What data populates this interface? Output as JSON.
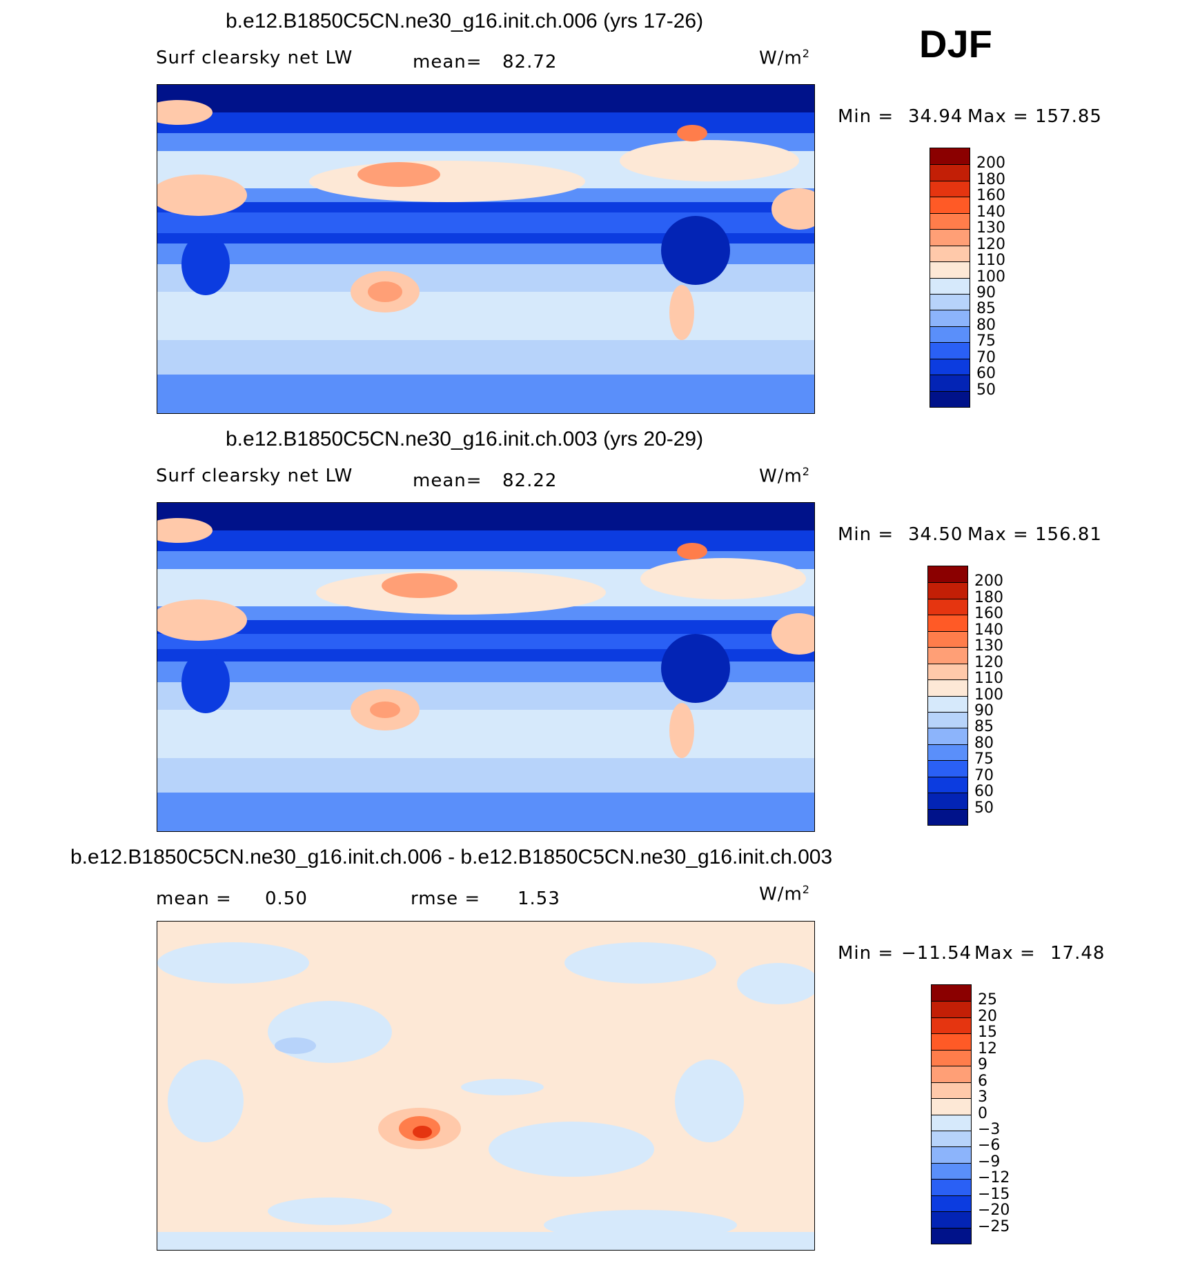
{
  "season": "DJF",
  "panels": [
    {
      "title": "b.e12.B1850C5CN.ne30_g16.init.ch.006 (yrs 17-26)",
      "left_label": "Surf clearsky net LW",
      "stat_label": "mean=",
      "stat_value": "82.72",
      "units": "W/m",
      "units_sup": "2",
      "minmax_label": "Min =",
      "min": "34.94",
      "max_label": "Max =",
      "max": "157.85",
      "colorbar_labels": [
        "200",
        "180",
        "160",
        "140",
        "130",
        "120",
        "110",
        "100",
        "90",
        "85",
        "80",
        "75",
        "70",
        "60",
        "50"
      ],
      "colorbar_colors": [
        "#8b0000",
        "#c31f06",
        "#e53510",
        "#ff5a26",
        "#ff7d4b",
        "#ff9f76",
        "#ffc9aa",
        "#fde8d6",
        "#d6e9fb",
        "#b7d3fa",
        "#8cb4fb",
        "#5a8ffa",
        "#2a60f5",
        "#0c3ce0",
        "#0324b5",
        "#00128a"
      ]
    },
    {
      "title": "b.e12.B1850C5CN.ne30_g16.init.ch.003 (yrs 20-29)",
      "left_label": "Surf clearsky net LW",
      "stat_label": "mean=",
      "stat_value": "82.22",
      "units": "W/m",
      "units_sup": "2",
      "minmax_label": "Min =",
      "min": "34.50",
      "max_label": "Max =",
      "max": "156.81",
      "colorbar_labels": [
        "200",
        "180",
        "160",
        "140",
        "130",
        "120",
        "110",
        "100",
        "90",
        "85",
        "80",
        "75",
        "70",
        "60",
        "50"
      ],
      "colorbar_colors": [
        "#8b0000",
        "#c31f06",
        "#e53510",
        "#ff5a26",
        "#ff7d4b",
        "#ff9f76",
        "#ffc9aa",
        "#fde8d6",
        "#d6e9fb",
        "#b7d3fa",
        "#8cb4fb",
        "#5a8ffa",
        "#2a60f5",
        "#0c3ce0",
        "#0324b5",
        "#00128a"
      ]
    },
    {
      "title": "b.e12.B1850C5CN.ne30_g16.init.ch.006 - b.e12.B1850C5CN.ne30_g16.init.ch.003",
      "left_label": "mean =",
      "left_value": "0.50",
      "stat_label": "rmse =",
      "stat_value": "1.53",
      "units": "W/m",
      "units_sup": "2",
      "minmax_label": "Min =",
      "min": "−11.54",
      "max_label": "Max =",
      "max": "17.48",
      "colorbar_labels": [
        "25",
        "20",
        "15",
        "12",
        "9",
        "6",
        "3",
        "0",
        "−3",
        "−6",
        "−9",
        "−12",
        "−15",
        "−20",
        "−25"
      ],
      "colorbar_colors": [
        "#8b0000",
        "#c31f06",
        "#e53510",
        "#ff5a26",
        "#ff7d4b",
        "#ff9f76",
        "#ffc9aa",
        "#fde8d6",
        "#d6e9fb",
        "#b7d3fa",
        "#8cb4fb",
        "#5a8ffa",
        "#2a60f5",
        "#0c3ce0",
        "#0324b5",
        "#00128a"
      ]
    }
  ]
}
